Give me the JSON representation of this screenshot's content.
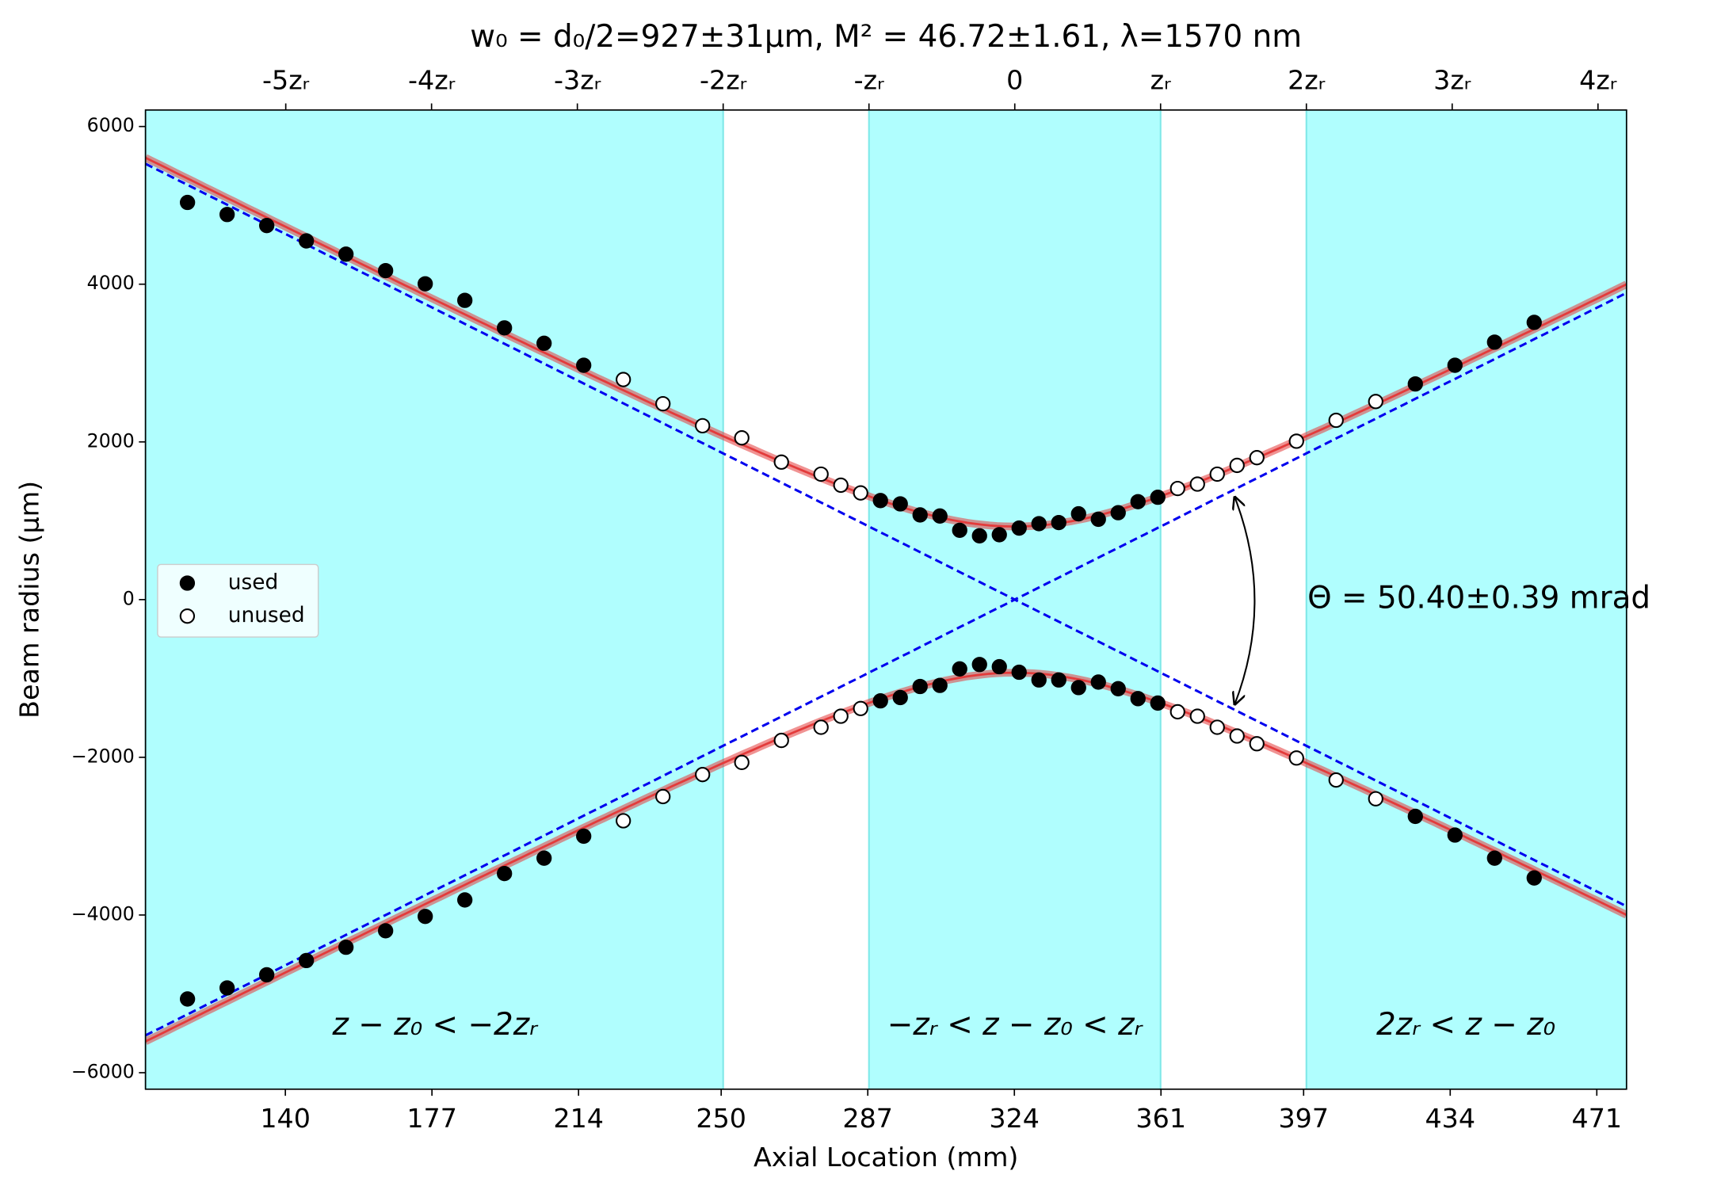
{
  "chart_data": {
    "type": "beam-caustic",
    "title": "w₀ = d₀/2=927±31µm,  M² = 46.72±1.61,  λ=1570 nm",
    "x_label": "Axial Location (mm)",
    "y_label": "Beam radius (µm)",
    "xlim": [
      104.7,
      478.5
    ],
    "ylim": [
      -6209,
      6209
    ],
    "xticks": [
      140,
      177,
      214,
      250,
      287,
      324,
      361,
      397,
      434,
      471
    ],
    "yticks": [
      {
        "value": -6000,
        "label": "−6000"
      },
      {
        "value": -4000,
        "label": "−4000"
      },
      {
        "value": -2000,
        "label": "−2000"
      },
      0,
      2000,
      4000,
      6000
    ],
    "x2ticks": [
      {
        "value": 140.1,
        "label": "-5zᵣ"
      },
      {
        "value": 176.9,
        "label": "-4zᵣ"
      },
      {
        "value": 213.7,
        "label": "-3zᵣ"
      },
      {
        "value": 250.5,
        "label": "-2zᵣ"
      },
      {
        "value": 287.3,
        "label": "-zᵣ"
      },
      {
        "value": 324.1,
        "label": "0"
      },
      {
        "value": 360.9,
        "label": "zᵣ"
      },
      {
        "value": 397.7,
        "label": "2zᵣ"
      },
      {
        "value": 434.5,
        "label": "3zᵣ"
      },
      {
        "value": 471.3,
        "label": "4zᵣ"
      }
    ],
    "shaded_regions": [
      [
        104.7,
        250.5
      ],
      [
        287.3,
        360.9
      ],
      [
        397.7,
        478.5
      ]
    ],
    "shade_color": "#b0fefe",
    "region_labels": [
      "z − z₀ < −2zᵣ",
      "−zᵣ < z − z₀ < zᵣ",
      "2zᵣ < z − z₀"
    ],
    "fit": {
      "w0": 927,
      "z0": 324.1,
      "zR": 36.8,
      "color": "#e33b3b"
    },
    "asymptote_color": "#0000ee",
    "theta_label": "Θ  = 50.40±0.39 mrad",
    "legend": "center left",
    "series": [
      {
        "name": "used",
        "filled": true,
        "color": "#000000",
        "x": [
          115.3,
          125.3,
          135.3,
          145.3,
          155.3,
          165.3,
          175.3,
          185.3,
          195.3,
          205.3,
          215.3,
          290.2,
          295.2,
          300.2,
          305.2,
          310.2,
          315.2,
          320.2,
          325.2,
          330.2,
          335.2,
          340.2,
          345.2,
          350.2,
          355.2,
          360.2,
          425.2,
          435.2,
          445.2,
          455.2
        ],
        "values": [
          5037,
          4884,
          4744,
          4549,
          4381,
          4172,
          4005,
          3795,
          3446,
          3251,
          2972,
          1256,
          1214,
          1074,
          1060,
          879,
          809,
          823,
          907,
          963,
          977,
          1088,
          1019,
          1102,
          1242,
          1298,
          2735,
          2972,
          3265,
          3516
        ],
        "neg_values": [
          -5065,
          -4925,
          -4758,
          -4577,
          -4409,
          -4200,
          -4018,
          -3809,
          -3474,
          -3279,
          -3000,
          -1284,
          -1242,
          -1102,
          -1088,
          -879,
          -823,
          -851,
          -921,
          -1019,
          -1019,
          -1116,
          -1046,
          -1130,
          -1256,
          -1312,
          -2749,
          -2986,
          -3279,
          -3530
        ]
      },
      {
        "name": "unused",
        "filled": false,
        "color": "#000000",
        "x": [
          225.3,
          235.3,
          245.3,
          255.2,
          265.2,
          275.2,
          280.2,
          285.2,
          365.2,
          370.2,
          375.2,
          380.2,
          385.2,
          395.2,
          405.2,
          415.2
        ],
        "values": [
          2791,
          2484,
          2205,
          2051,
          1744,
          1591,
          1451,
          1353,
          1409,
          1465,
          1591,
          1702,
          1800,
          2009,
          2274,
          2512
        ],
        "neg_values": [
          -2805,
          -2498,
          -2219,
          -2065,
          -1786,
          -1619,
          -1479,
          -1381,
          -1423,
          -1479,
          -1619,
          -1730,
          -1828,
          -2009,
          -2288,
          -2526
        ]
      }
    ]
  }
}
